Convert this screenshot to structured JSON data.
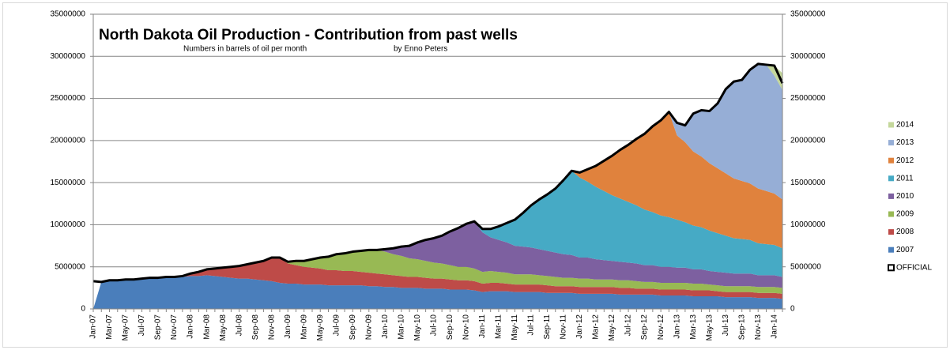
{
  "chart_data": {
    "type": "area",
    "stacked": true,
    "title": "North Dakota Oil Production -  Contribution from past wells",
    "subtitle": "Numbers in barrels of oil per month",
    "annotation": "by Enno Peters",
    "legend": "right",
    "grid": true,
    "ylim": [
      0,
      35000000
    ],
    "yticks": [
      0,
      5000000,
      10000000,
      15000000,
      20000000,
      25000000,
      30000000,
      35000000
    ],
    "y2lim": [
      0,
      35000000
    ],
    "y2ticks": [
      0,
      5000000,
      10000000,
      15000000,
      20000000,
      25000000,
      30000000,
      35000000
    ],
    "categories": [
      "Jan-07",
      null,
      "Mar-07",
      null,
      "May-07",
      null,
      "Jul-07",
      null,
      "Sep-07",
      null,
      "Nov-07",
      null,
      "Jan-08",
      null,
      "Mar-08",
      null,
      "May-08",
      null,
      "Jul-08",
      null,
      "Sep-08",
      null,
      "Nov-08",
      null,
      "Jan-09",
      null,
      "Mar-09",
      null,
      "May-09",
      null,
      "Jul-09",
      null,
      "Sep-09",
      null,
      "Nov-09",
      null,
      "Jan-10",
      null,
      "Mar-10",
      null,
      "May-10",
      null,
      "Jul-10",
      null,
      "Sep-10",
      null,
      "Nov-10",
      null,
      "Jan-11",
      null,
      "Mar-11",
      null,
      "May-11",
      null,
      "Jul-11",
      null,
      "Sep-11",
      null,
      "Nov-11",
      null,
      "Jan-12",
      null,
      "Mar-12",
      null,
      "May-12",
      null,
      "Jul-12",
      null,
      "Sep-12",
      null,
      "Nov-12",
      null,
      "Jan-13",
      null,
      "Mar-13",
      null,
      "May-13",
      null,
      "Jul-13",
      null,
      "Sep-13",
      null,
      "Nov-13",
      null,
      "Jan-14",
      null
    ],
    "series": [
      {
        "name": "2007",
        "color": "#4a7ebb",
        "values": [
          0,
          3200000,
          3300000,
          3300000,
          3400000,
          3500000,
          3500000,
          3600000,
          3600000,
          3700000,
          3800000,
          3800000,
          3900000,
          3900000,
          4000000,
          3900000,
          3800000,
          3700000,
          3600000,
          3600000,
          3500000,
          3400000,
          3300000,
          3100000,
          3000000,
          3000000,
          2900000,
          2900000,
          2900000,
          2800000,
          2800000,
          2800000,
          2800000,
          2800000,
          2700000,
          2700000,
          2600000,
          2600000,
          2500000,
          2500000,
          2500000,
          2400000,
          2400000,
          2400000,
          2300000,
          2300000,
          2300000,
          2200000,
          2000000,
          2100000,
          2100000,
          2100000,
          2000000,
          2000000,
          2000000,
          2000000,
          1900000,
          1900000,
          1900000,
          1900000,
          1800000,
          1800000,
          1800000,
          1800000,
          1800000,
          1700000,
          1700000,
          1700000,
          1700000,
          1700000,
          1600000,
          1600000,
          1600000,
          1600000,
          1500000,
          1500000,
          1500000,
          1500000,
          1400000,
          1400000,
          1400000,
          1400000,
          1300000,
          1300000,
          1300000,
          1200000
        ]
      },
      {
        "name": "2008",
        "color": "#be4b48",
        "values": [
          0,
          0,
          0,
          0,
          0,
          0,
          0,
          0,
          0,
          0,
          0,
          0,
          300000,
          500000,
          700000,
          900000,
          1100000,
          1300000,
          1500000,
          1700000,
          2000000,
          2300000,
          2800000,
          3000000,
          2400000,
          2200000,
          2100000,
          2000000,
          1900000,
          1800000,
          1800000,
          1700000,
          1700000,
          1600000,
          1600000,
          1500000,
          1500000,
          1400000,
          1400000,
          1300000,
          1300000,
          1300000,
          1200000,
          1200000,
          1200000,
          1100000,
          1100000,
          1100000,
          1000000,
          1000000,
          1000000,
          900000,
          900000,
          900000,
          900000,
          900000,
          900000,
          800000,
          800000,
          800000,
          800000,
          800000,
          800000,
          800000,
          800000,
          800000,
          800000,
          700000,
          700000,
          700000,
          700000,
          700000,
          700000,
          700000,
          700000,
          700000,
          700000,
          600000,
          600000,
          600000,
          600000,
          600000,
          600000,
          600000,
          600000,
          600000
        ]
      },
      {
        "name": "2009",
        "color": "#98b954",
        "values": [
          0,
          0,
          0,
          0,
          0,
          0,
          0,
          0,
          0,
          0,
          0,
          0,
          0,
          0,
          0,
          0,
          0,
          0,
          0,
          0,
          0,
          0,
          0,
          0,
          300000,
          500000,
          700000,
          1000000,
          1300000,
          1600000,
          1900000,
          2100000,
          2300000,
          2500000,
          2700000,
          2800000,
          2700000,
          2500000,
          2400000,
          2200000,
          2100000,
          2000000,
          1900000,
          1800000,
          1700000,
          1600000,
          1600000,
          1500000,
          1400000,
          1400000,
          1300000,
          1300000,
          1200000,
          1200000,
          1200000,
          1100000,
          1100000,
          1100000,
          1000000,
          1000000,
          1000000,
          1000000,
          900000,
          900000,
          900000,
          900000,
          900000,
          900000,
          800000,
          800000,
          800000,
          800000,
          800000,
          800000,
          800000,
          800000,
          700000,
          700000,
          700000,
          700000,
          700000,
          700000,
          700000,
          700000,
          700000,
          700000
        ]
      },
      {
        "name": "2010",
        "color": "#7d60a0",
        "values": [
          0,
          0,
          0,
          0,
          0,
          0,
          0,
          0,
          0,
          0,
          0,
          0,
          0,
          0,
          0,
          0,
          0,
          0,
          0,
          0,
          0,
          0,
          0,
          0,
          0,
          0,
          0,
          0,
          0,
          0,
          0,
          0,
          0,
          0,
          0,
          0,
          300000,
          700000,
          1100000,
          1500000,
          2000000,
          2500000,
          2900000,
          3300000,
          4000000,
          4600000,
          5100000,
          5600000,
          4700000,
          4000000,
          3800000,
          3600000,
          3400000,
          3300000,
          3200000,
          3100000,
          3000000,
          2900000,
          2800000,
          2700000,
          2500000,
          2500000,
          2400000,
          2300000,
          2200000,
          2200000,
          2100000,
          2100000,
          2000000,
          2000000,
          1900000,
          1900000,
          1800000,
          1800000,
          1700000,
          1700000,
          1600000,
          1600000,
          1600000,
          1500000,
          1500000,
          1500000,
          1400000,
          1400000,
          1400000,
          1300000
        ]
      },
      {
        "name": "2011",
        "color": "#46aac5",
        "values": [
          0,
          0,
          0,
          0,
          0,
          0,
          0,
          0,
          0,
          0,
          0,
          0,
          0,
          0,
          0,
          0,
          0,
          0,
          0,
          0,
          0,
          0,
          0,
          0,
          0,
          0,
          0,
          0,
          0,
          0,
          0,
          0,
          0,
          0,
          0,
          0,
          0,
          0,
          0,
          0,
          0,
          0,
          0,
          0,
          0,
          0,
          0,
          0,
          400000,
          1000000,
          1600000,
          2300000,
          3100000,
          4000000,
          5000000,
          5900000,
          6700000,
          7600000,
          8800000,
          10000000,
          9500000,
          9000000,
          8600000,
          8200000,
          7800000,
          7500000,
          7200000,
          6900000,
          6600000,
          6300000,
          6100000,
          5900000,
          5700000,
          5400000,
          5200000,
          5000000,
          4800000,
          4600000,
          4400000,
          4200000,
          4100000,
          4000000,
          3800000,
          3700000,
          3600000,
          3400000
        ]
      },
      {
        "name": "2012",
        "color": "#e0823d",
        "values": [
          0,
          0,
          0,
          0,
          0,
          0,
          0,
          0,
          0,
          0,
          0,
          0,
          0,
          0,
          0,
          0,
          0,
          0,
          0,
          0,
          0,
          0,
          0,
          0,
          0,
          0,
          0,
          0,
          0,
          0,
          0,
          0,
          0,
          0,
          0,
          0,
          0,
          0,
          0,
          0,
          0,
          0,
          0,
          0,
          0,
          0,
          0,
          0,
          0,
          0,
          0,
          0,
          0,
          0,
          0,
          0,
          0,
          0,
          0,
          0,
          600000,
          1500000,
          2500000,
          3600000,
          4700000,
          5800000,
          6800000,
          7900000,
          9000000,
          10200000,
          11300000,
          12500000,
          10000000,
          9500000,
          8800000,
          8400000,
          8000000,
          7700000,
          7400000,
          7100000,
          6900000,
          6700000,
          6500000,
          6300000,
          6100000,
          5800000
        ]
      },
      {
        "name": "2013",
        "color": "#96aed6",
        "values": [
          0,
          0,
          0,
          0,
          0,
          0,
          0,
          0,
          0,
          0,
          0,
          0,
          0,
          0,
          0,
          0,
          0,
          0,
          0,
          0,
          0,
          0,
          0,
          0,
          0,
          0,
          0,
          0,
          0,
          0,
          0,
          0,
          0,
          0,
          0,
          0,
          0,
          0,
          0,
          0,
          0,
          0,
          0,
          0,
          0,
          0,
          0,
          0,
          0,
          0,
          0,
          0,
          0,
          0,
          0,
          0,
          0,
          0,
          0,
          0,
          0,
          0,
          0,
          0,
          0,
          0,
          0,
          0,
          0,
          0,
          0,
          0,
          1500000,
          2000000,
          4500000,
          5500000,
          6200000,
          7700000,
          10000000,
          11500000,
          12000000,
          13500000,
          14800000,
          15000000,
          14000000,
          13000000
        ]
      },
      {
        "name": "2014",
        "color": "#c4d79b",
        "values": [
          0,
          0,
          0,
          0,
          0,
          0,
          0,
          0,
          0,
          0,
          0,
          0,
          0,
          0,
          0,
          0,
          0,
          0,
          0,
          0,
          0,
          0,
          0,
          0,
          0,
          0,
          0,
          0,
          0,
          0,
          0,
          0,
          0,
          0,
          0,
          0,
          0,
          0,
          0,
          0,
          0,
          0,
          0,
          0,
          0,
          0,
          0,
          0,
          0,
          0,
          0,
          0,
          0,
          0,
          0,
          0,
          0,
          0,
          0,
          0,
          0,
          0,
          0,
          0,
          0,
          0,
          0,
          0,
          0,
          0,
          0,
          0,
          0,
          0,
          0,
          0,
          0,
          0,
          0,
          0,
          0,
          0,
          0,
          0,
          1200000,
          2000000
        ]
      },
      {
        "name": "OFFICIAL",
        "color": "#000000",
        "kind": "line",
        "values": [
          3300000,
          3200000,
          3400000,
          3400000,
          3500000,
          3500000,
          3600000,
          3700000,
          3700000,
          3800000,
          3800000,
          3900000,
          4200000,
          4400000,
          4700000,
          4800000,
          4900000,
          5000000,
          5100000,
          5300000,
          5500000,
          5700000,
          6100000,
          6100000,
          5600000,
          5700000,
          5700000,
          5900000,
          6100000,
          6200000,
          6500000,
          6600000,
          6800000,
          6900000,
          7000000,
          7000000,
          7100000,
          7200000,
          7400000,
          7500000,
          7900000,
          8200000,
          8400000,
          8700000,
          9200000,
          9600000,
          10100000,
          10400000,
          9500000,
          9500000,
          9800000,
          10200000,
          10600000,
          11400000,
          12300000,
          13000000,
          13600000,
          14300000,
          15300000,
          16400000,
          16200000,
          16600000,
          17000000,
          17600000,
          18200000,
          18900000,
          19500000,
          20200000,
          20800000,
          21700000,
          22400000,
          23400000,
          22100000,
          21800000,
          23200000,
          23600000,
          23500000,
          24400000,
          26100000,
          27000000,
          27200000,
          28400000,
          29100000,
          29000000,
          28900000,
          26800000
        ]
      }
    ]
  }
}
